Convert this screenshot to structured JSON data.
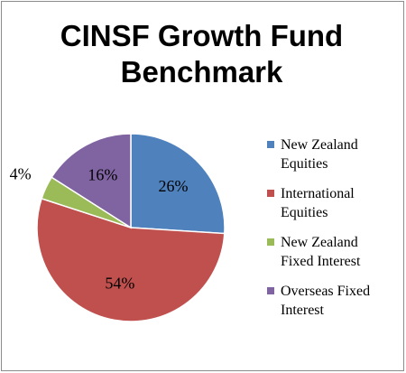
{
  "chart_data": {
    "type": "pie",
    "title_lines": [
      "CINSF Growth Fund",
      "Benchmark"
    ],
    "slices": [
      {
        "name_lines": [
          "New Zealand",
          "Equities"
        ],
        "value": 26,
        "label": "26%",
        "color": "#4f81bd"
      },
      {
        "name_lines": [
          "International",
          "Equities"
        ],
        "value": 54,
        "label": "54%",
        "color": "#c0504d"
      },
      {
        "name_lines": [
          "New Zealand",
          "Fixed Interest"
        ],
        "value": 4,
        "label": "4%",
        "color": "#9bbb59"
      },
      {
        "name_lines": [
          "Overseas Fixed",
          "Interest"
        ],
        "value": 16,
        "label": "16%",
        "color": "#8064a2"
      }
    ],
    "legend_position": "right"
  }
}
